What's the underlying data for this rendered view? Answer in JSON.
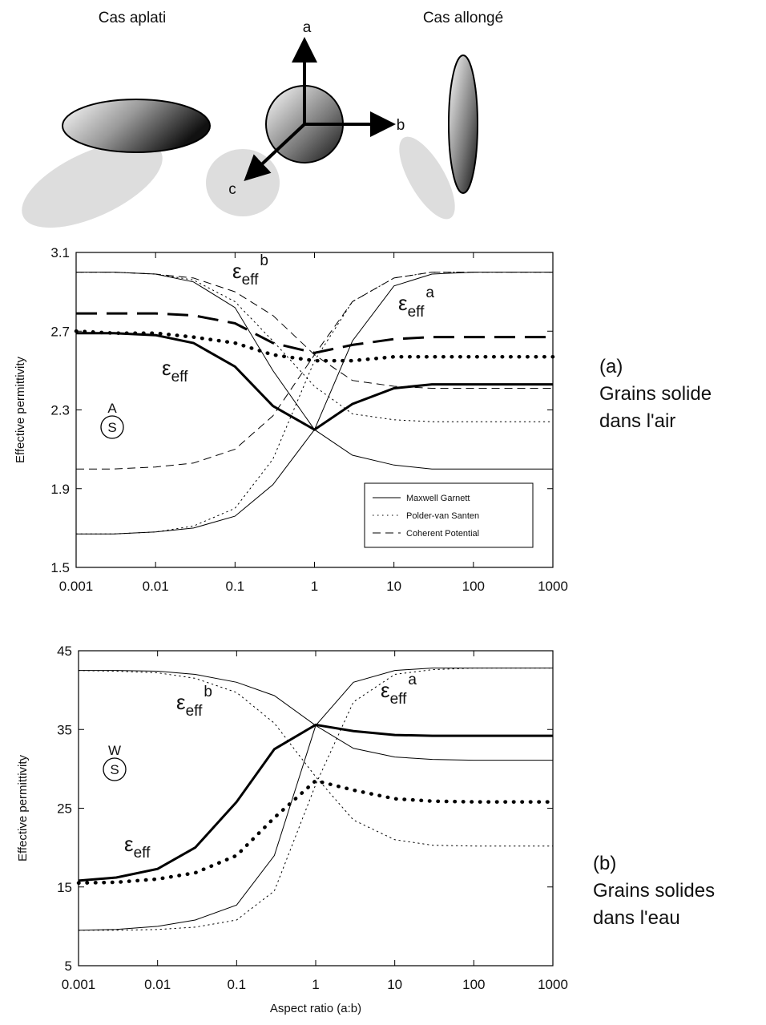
{
  "diagram": {
    "oblate": "Cas aplati",
    "prolate": "Cas allongé",
    "axes": [
      "a",
      "b",
      "c"
    ]
  },
  "chart_data": [
    {
      "type": "line",
      "xscale": "log",
      "xlim": [
        0.001,
        1000
      ],
      "xticks": [
        0.001,
        0.01,
        0.1,
        1,
        10,
        100,
        1000
      ],
      "ylim": [
        1.5,
        3.1
      ],
      "yticks": [
        1.5,
        1.9,
        2.3,
        2.7,
        3.1
      ],
      "ylabel": "Effective permittivity",
      "legend": true,
      "x": [
        0.001,
        0.003,
        0.01,
        0.03,
        0.1,
        0.3,
        1,
        3,
        10,
        30,
        100,
        300,
        1000
      ],
      "series": [
        {
          "name": "Maxwell Garnett",
          "dash": "solid",
          "curves": [
            {
              "thick": false,
              "values": [
                1.67,
                1.67,
                1.68,
                1.7,
                1.76,
                1.92,
                2.2,
                2.65,
                2.93,
                2.99,
                3.0,
                3.0,
                3.0
              ]
            },
            {
              "thick": false,
              "values": [
                3.0,
                3.0,
                2.99,
                2.95,
                2.82,
                2.5,
                2.2,
                2.07,
                2.02,
                2.0,
                2.0,
                2.0,
                2.0
              ]
            },
            {
              "thick": true,
              "values": [
                2.69,
                2.69,
                2.68,
                2.64,
                2.52,
                2.32,
                2.2,
                2.33,
                2.41,
                2.43,
                2.43,
                2.43,
                2.43
              ]
            }
          ]
        },
        {
          "name": "Polder-van Santen",
          "dash": "dotted",
          "curves": [
            {
              "thick": false,
              "values": [
                1.67,
                1.67,
                1.68,
                1.71,
                1.8,
                2.05,
                2.55,
                2.85,
                2.97,
                3.0,
                3.0,
                3.0,
                3.0
              ]
            },
            {
              "thick": false,
              "values": [
                3.0,
                3.0,
                2.99,
                2.96,
                2.85,
                2.65,
                2.42,
                2.28,
                2.25,
                2.24,
                2.24,
                2.24,
                2.24
              ]
            },
            {
              "thick": true,
              "values": [
                2.7,
                2.69,
                2.69,
                2.67,
                2.64,
                2.58,
                2.55,
                2.55,
                2.57,
                2.57,
                2.57,
                2.57,
                2.57
              ]
            }
          ]
        },
        {
          "name": "Coherent Potential",
          "dash": "dashed",
          "curves": [
            {
              "thick": false,
              "values": [
                2.0,
                2.0,
                2.01,
                2.03,
                2.1,
                2.27,
                2.58,
                2.85,
                2.97,
                3.0,
                3.0,
                3.0,
                3.0
              ]
            },
            {
              "thick": false,
              "values": [
                3.0,
                3.0,
                2.99,
                2.97,
                2.9,
                2.78,
                2.58,
                2.45,
                2.42,
                2.41,
                2.41,
                2.41,
                2.41
              ]
            },
            {
              "thick": true,
              "values": [
                2.79,
                2.79,
                2.79,
                2.78,
                2.74,
                2.64,
                2.59,
                2.63,
                2.66,
                2.67,
                2.67,
                2.67,
                2.67
              ]
            }
          ]
        }
      ],
      "annotations": [
        {
          "symbol": "ε",
          "sub": "eff",
          "sup": "b"
        },
        {
          "symbol": "ε",
          "sub": "eff",
          "sup": "a"
        },
        {
          "symbol": "ε",
          "sub": "eff"
        }
      ],
      "medium": [
        "A",
        "S"
      ],
      "caption": [
        "(a)",
        "Grains solide",
        "dans l'air"
      ]
    },
    {
      "type": "line",
      "xscale": "log",
      "xlim": [
        0.001,
        1000
      ],
      "xticks": [
        0.001,
        0.01,
        0.1,
        1,
        10,
        100,
        1000
      ],
      "ylim": [
        5,
        45
      ],
      "yticks": [
        5,
        15,
        25,
        35,
        45
      ],
      "ylabel": "Effective permittivity",
      "xlabel": "Aspect ratio (a:b)",
      "legend": false,
      "x": [
        0.001,
        0.003,
        0.01,
        0.03,
        0.1,
        0.3,
        1,
        3,
        10,
        30,
        100,
        300,
        1000
      ],
      "series": [
        {
          "dash": "solid",
          "curves": [
            {
              "thick": false,
              "values": [
                9.5,
                9.6,
                10,
                10.8,
                12.7,
                19,
                35.5,
                41,
                42.5,
                42.8,
                42.8,
                42.8,
                42.8
              ]
            },
            {
              "thick": false,
              "values": [
                42.5,
                42.5,
                42.4,
                42,
                41,
                39.3,
                35.5,
                32.6,
                31.5,
                31.2,
                31.1,
                31.1,
                31.1
              ]
            },
            {
              "thick": true,
              "values": [
                15.8,
                16.2,
                17.3,
                20,
                25.8,
                32.5,
                35.6,
                34.8,
                34.3,
                34.2,
                34.2,
                34.2,
                34.2
              ]
            }
          ]
        },
        {
          "dash": "dotted",
          "curves": [
            {
              "thick": false,
              "values": [
                9.5,
                9.5,
                9.6,
                9.9,
                10.8,
                14.5,
                28,
                38.5,
                42,
                42.6,
                42.8,
                42.8,
                42.8
              ]
            },
            {
              "thick": false,
              "values": [
                42.5,
                42.4,
                42.2,
                41.5,
                39.7,
                35.8,
                29,
                23.5,
                21,
                20.3,
                20.2,
                20.2,
                20.2
              ]
            },
            {
              "thick": true,
              "values": [
                15.5,
                15.6,
                16,
                16.8,
                19,
                23.8,
                28.5,
                27.3,
                26.2,
                25.9,
                25.8,
                25.8,
                25.8
              ]
            }
          ]
        }
      ],
      "annotations": [
        {
          "symbol": "ε",
          "sub": "eff",
          "sup": "b"
        },
        {
          "symbol": "ε",
          "sub": "eff",
          "sup": "a"
        },
        {
          "symbol": "ε",
          "sub": "eff"
        }
      ],
      "medium": [
        "W",
        "S"
      ],
      "caption": [
        "(b)",
        "Grains solides",
        "dans l'eau"
      ]
    }
  ]
}
